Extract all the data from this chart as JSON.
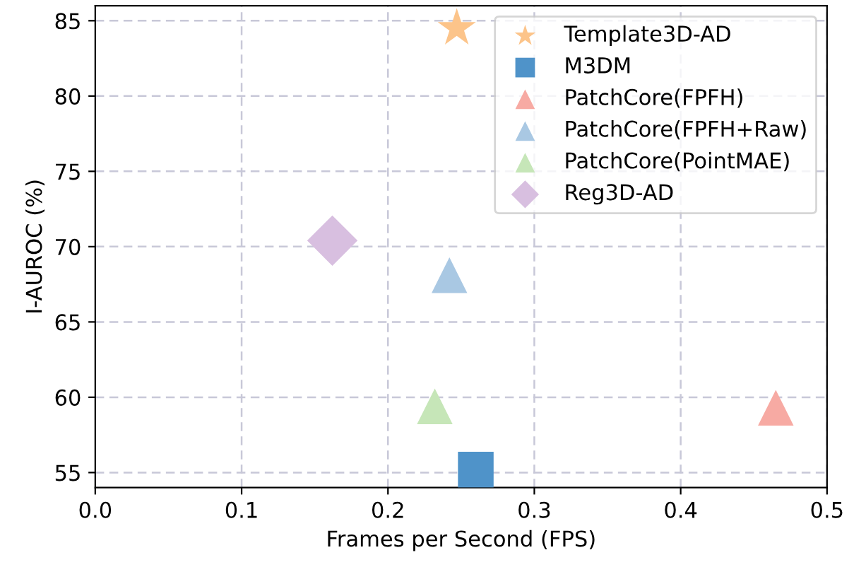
{
  "chart_data": {
    "type": "scatter",
    "xlabel": "Frames per Second (FPS)",
    "ylabel": "I-AUROC (%)",
    "xlim": [
      0,
      0.5
    ],
    "xticks": [
      {
        "value": 0,
        "label": "0.0"
      },
      0.1,
      0.2,
      0.3,
      0.4,
      0.5
    ],
    "ylim": [
      54,
      86
    ],
    "yticks": [
      55,
      60,
      65,
      70,
      75,
      80,
      85
    ],
    "grid": true,
    "legend": "top right",
    "series": [
      {
        "name": "Template3D-AD",
        "color": "#fcc48a",
        "marker": "star",
        "x": [
          0.247
        ],
        "values": [
          84.5
        ]
      },
      {
        "name": "M3DM",
        "color": "#4f93c9",
        "marker": "square",
        "x": [
          0.26
        ],
        "values": [
          55.2
        ]
      },
      {
        "name": "PatchCore(FPFH)",
        "color": "#f7aaa3",
        "marker": "triangle",
        "x": [
          0.465
        ],
        "values": [
          59.3
        ]
      },
      {
        "name": "PatchCore(FPFH+Raw)",
        "color": "#a9c8e3",
        "marker": "triangle",
        "x": [
          0.242
        ],
        "values": [
          68.1
        ]
      },
      {
        "name": "PatchCore(PointMAE)",
        "color": "#c6e6b8",
        "marker": "triangle",
        "x": [
          0.232
        ],
        "values": [
          59.4
        ]
      },
      {
        "name": "Reg3D-AD",
        "color": "#d8bfe0",
        "marker": "diamond",
        "x": [
          0.162
        ],
        "values": [
          70.4
        ]
      }
    ]
  }
}
